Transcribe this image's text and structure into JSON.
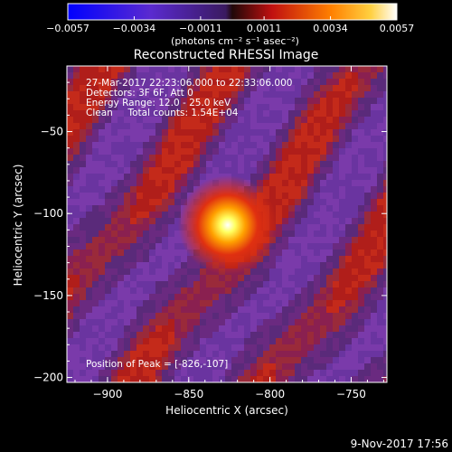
{
  "colorbar": {
    "ticks": [
      "-0.0057",
      "-0.0034",
      "-0.0011",
      "0.0011",
      "0.0034",
      "0.0057"
    ],
    "unit_label": "(photons cm⁻² s⁻¹ asec⁻²)",
    "min": -0.0057,
    "max": 0.0057
  },
  "chart_data": {
    "type": "heatmap",
    "title": "Reconstructed RHESSI Image",
    "xlabel": "Heliocentric X (arcsec)",
    "ylabel": "Heliocentric Y (arcsec)",
    "xlim": [
      -925,
      -728
    ],
    "ylim": [
      -203,
      -10
    ],
    "x_ticks": [
      -900,
      -850,
      -800,
      -750
    ],
    "y_ticks": [
      -50,
      -100,
      -150,
      -200
    ],
    "x_tick_labels": [
      "−900",
      "−850",
      "−800",
      "−750"
    ],
    "y_tick_labels": [
      "−50",
      "−100",
      "−150",
      "−200"
    ],
    "peak": [
      -826,
      -107
    ],
    "annotations": {
      "time_range": "27-Mar-2017 22:23:06.000 to 22:33:06.000",
      "detectors": "Detectors: 3F 6F, Att 0",
      "energy": "Energy Range: 12.0 - 25.0 keV",
      "clean": "Clean     Total counts: 1.54E+04",
      "peak_label": "Position of Peak = [-826,-107]"
    }
  },
  "footer": {
    "date": "9-Nov-2017 17:56"
  }
}
